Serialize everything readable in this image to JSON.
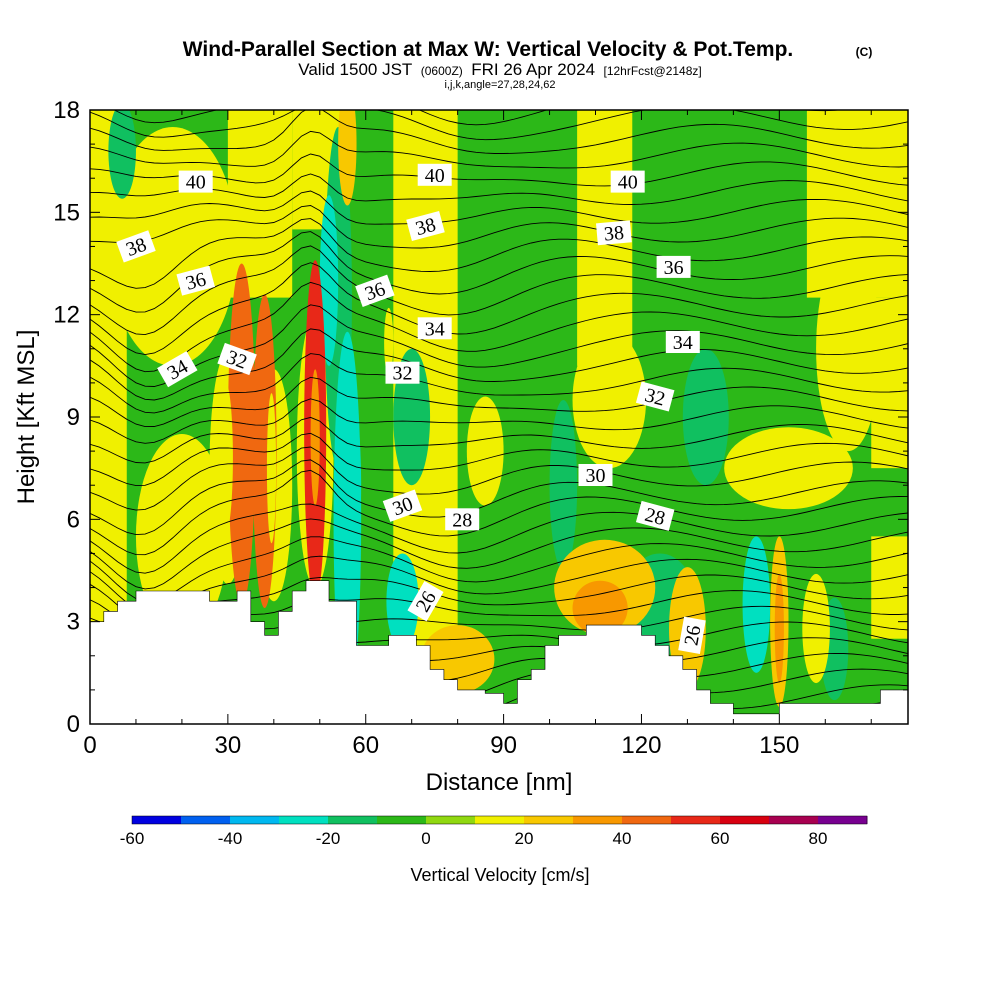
{
  "chart_data": {
    "type": "heatmap",
    "title": "Wind-Parallel Section at Max W: Vertical Velocity & Pot.Temp.",
    "copyright_mark": "(C)",
    "subtitle": {
      "valid_prefix": "Valid 1500 JST",
      "utc": "(0600Z)",
      "date": "FRI 26 Apr 2024",
      "fcst": "[12hrFcst@2148z]"
    },
    "subtitle2": "i,j,k,angle=27,28,24,62",
    "xlabel": "Distance [nm]",
    "ylabel": "Height [Kft MSL]",
    "xlim": [
      0,
      178
    ],
    "ylim": [
      0,
      18
    ],
    "xticks": [
      0,
      30,
      60,
      90,
      120,
      150
    ],
    "yticks": [
      0,
      3,
      6,
      9,
      12,
      15,
      18
    ],
    "colorbar": {
      "label": "Vertical Velocity [cm/s]",
      "ticks": [
        -60,
        -40,
        -20,
        0,
        20,
        40,
        60,
        80
      ],
      "range": [
        -60,
        90
      ],
      "colors": [
        "#0000e0",
        "#0060f0",
        "#00b8f0",
        "#00e0c0",
        "#10c060",
        "#2cb818",
        "#90d810",
        "#f0f000",
        "#f8c800",
        "#f89800",
        "#f06810",
        "#e82818",
        "#d80010",
        "#a80050",
        "#780090"
      ]
    },
    "background_fill": "#2cb818",
    "terrain": [
      [
        0,
        3.0
      ],
      [
        3,
        3.0
      ],
      [
        3,
        3.3
      ],
      [
        6,
        3.3
      ],
      [
        6,
        3.6
      ],
      [
        10,
        3.6
      ],
      [
        10,
        3.9
      ],
      [
        26,
        3.9
      ],
      [
        26,
        3.6
      ],
      [
        32,
        3.6
      ],
      [
        32,
        3.9
      ],
      [
        35,
        3.9
      ],
      [
        35,
        3.0
      ],
      [
        38,
        3.0
      ],
      [
        38,
        2.6
      ],
      [
        41,
        2.6
      ],
      [
        41,
        3.3
      ],
      [
        44,
        3.3
      ],
      [
        44,
        3.9
      ],
      [
        47,
        3.9
      ],
      [
        47,
        4.2
      ],
      [
        52,
        4.2
      ],
      [
        52,
        3.6
      ],
      [
        58,
        3.6
      ],
      [
        58,
        2.3
      ],
      [
        65,
        2.3
      ],
      [
        65,
        2.6
      ],
      [
        71,
        2.6
      ],
      [
        71,
        2.3
      ],
      [
        74,
        2.3
      ],
      [
        74,
        1.6
      ],
      [
        77,
        1.6
      ],
      [
        77,
        1.3
      ],
      [
        80,
        1.3
      ],
      [
        80,
        1.0
      ],
      [
        86,
        1.0
      ],
      [
        86,
        0.9
      ],
      [
        90,
        0.9
      ],
      [
        90,
        0.6
      ],
      [
        93,
        0.6
      ],
      [
        93,
        1.3
      ],
      [
        96,
        1.3
      ],
      [
        96,
        1.6
      ],
      [
        99,
        1.6
      ],
      [
        99,
        2.3
      ],
      [
        102,
        2.3
      ],
      [
        102,
        2.6
      ],
      [
        108,
        2.6
      ],
      [
        108,
        2.9
      ],
      [
        120,
        2.9
      ],
      [
        120,
        2.6
      ],
      [
        123,
        2.6
      ],
      [
        123,
        2.3
      ],
      [
        126,
        2.3
      ],
      [
        126,
        2.0
      ],
      [
        129,
        2.0
      ],
      [
        129,
        1.6
      ],
      [
        132,
        1.6
      ],
      [
        132,
        1.0
      ],
      [
        135,
        1.0
      ],
      [
        135,
        0.6
      ],
      [
        140,
        0.6
      ],
      [
        140,
        0.3
      ],
      [
        150,
        0.3
      ],
      [
        150,
        0.6
      ],
      [
        172,
        0.6
      ],
      [
        172,
        1.0
      ],
      [
        178,
        1.0
      ]
    ],
    "w_features": [
      {
        "type": "band",
        "x0": -1,
        "x1": 8,
        "y0": 0,
        "y1": 18.5,
        "w": 15
      },
      {
        "type": "band",
        "x0": 30,
        "x1": 44,
        "y0": 12.5,
        "y1": 18.5,
        "w": 12
      },
      {
        "type": "band",
        "x0": 44,
        "x1": 56,
        "y0": 14.5,
        "y1": 18.5,
        "w": 12
      },
      {
        "type": "band",
        "x0": 66,
        "x1": 80,
        "y0": 0,
        "y1": 18.5,
        "w": 12
      },
      {
        "type": "band",
        "x0": 106,
        "x1": 118,
        "y0": 10.5,
        "y1": 18.5,
        "w": 12
      },
      {
        "type": "band",
        "x0": 156,
        "x1": 178,
        "y0": 12.5,
        "y1": 18.5,
        "w": 12
      },
      {
        "type": "band",
        "x0": 170,
        "x1": 178,
        "y0": 7.5,
        "y1": 12.5,
        "w": 12
      },
      {
        "type": "band",
        "x0": 170,
        "x1": 178,
        "y0": 2.5,
        "y1": 5.5,
        "w": 12
      },
      {
        "type": "blob",
        "cx": 18,
        "cy": 14,
        "rx": 14,
        "ry": 3.5,
        "w": 12
      },
      {
        "type": "blob",
        "cx": 20,
        "cy": 5.5,
        "rx": 10,
        "ry": 3,
        "w": 12
      },
      {
        "type": "blob",
        "cx": 152,
        "cy": 7.5,
        "rx": 14,
        "ry": 1.2,
        "w": 12
      },
      {
        "type": "blob",
        "cx": 165,
        "cy": 11,
        "rx": 7,
        "ry": 3,
        "w": 12
      },
      {
        "type": "blob",
        "cx": 113,
        "cy": 9.5,
        "rx": 8,
        "ry": 2,
        "w": 12
      },
      {
        "type": "blob",
        "cx": 86,
        "cy": 8,
        "rx": 4,
        "ry": 1.6,
        "w": 12
      },
      {
        "type": "blob",
        "cx": 30,
        "cy": 7.5,
        "rx": 4,
        "ry": 3.4,
        "w": 12
      },
      {
        "type": "blob",
        "cx": 40,
        "cy": 7,
        "rx": 4,
        "ry": 3.4,
        "w": 12
      },
      {
        "type": "blob",
        "cx": 49,
        "cy": 8,
        "rx": 4,
        "ry": 4,
        "w": 12
      },
      {
        "type": "blob",
        "cx": 70,
        "cy": 9,
        "rx": 4,
        "ry": 2,
        "w": -15
      },
      {
        "type": "blob",
        "cx": 103,
        "cy": 7,
        "rx": 3,
        "ry": 2.5,
        "w": -15
      },
      {
        "type": "blob",
        "cx": 134,
        "cy": 9,
        "rx": 5,
        "ry": 2,
        "w": -15
      },
      {
        "type": "blob",
        "cx": 145,
        "cy": 3.5,
        "rx": 3,
        "ry": 2,
        "w": -25
      },
      {
        "type": "blob",
        "cx": 124,
        "cy": 3.5,
        "rx": 8,
        "ry": 1.5,
        "w": -15
      },
      {
        "type": "blob",
        "cx": 162,
        "cy": 2.2,
        "rx": 3,
        "ry": 1.5,
        "w": -15
      },
      {
        "type": "blob",
        "cx": 7,
        "cy": 16.8,
        "rx": 3,
        "ry": 1.4,
        "w": -15
      },
      {
        "type": "blob",
        "cx": 54,
        "cy": 12.5,
        "rx": 3,
        "ry": 5,
        "w": -15
      },
      {
        "type": "blob",
        "cx": 56,
        "cy": 6,
        "rx": 3,
        "ry": 5.5,
        "w": -25
      },
      {
        "type": "blob",
        "cx": 52,
        "cy": 13,
        "rx": 2,
        "ry": 2.5,
        "w": -30
      },
      {
        "type": "blob",
        "cx": 57,
        "cy": 7,
        "rx": 2,
        "ry": 2.5,
        "w": -25
      },
      {
        "type": "blob",
        "cx": 68,
        "cy": 3.6,
        "rx": 3.5,
        "ry": 1.4,
        "w": -25
      },
      {
        "type": "blob",
        "cx": 112,
        "cy": 4,
        "rx": 11,
        "ry": 1.4,
        "w": 24
      },
      {
        "type": "blob",
        "cx": 111,
        "cy": 3.4,
        "rx": 6,
        "ry": 0.8,
        "w": 34
      },
      {
        "type": "blob",
        "cx": 80,
        "cy": 1.9,
        "rx": 8,
        "ry": 1.0,
        "w": 22
      },
      {
        "type": "blob",
        "cx": 130,
        "cy": 2.8,
        "rx": 4,
        "ry": 1.8,
        "w": 22
      },
      {
        "type": "blob",
        "cx": 150,
        "cy": 3,
        "rx": 2,
        "ry": 2.5,
        "w": 24
      },
      {
        "type": "blob",
        "cx": 150,
        "cy": 2.8,
        "rx": 1,
        "ry": 1.6,
        "w": 32
      },
      {
        "type": "blob",
        "cx": 158,
        "cy": 2.8,
        "rx": 3,
        "ry": 1.6,
        "w": 12
      },
      {
        "type": "blob",
        "cx": 56,
        "cy": 17,
        "rx": 2,
        "ry": 1.8,
        "w": 22
      },
      {
        "type": "blob",
        "cx": 65,
        "cy": 11.2,
        "rx": 1,
        "ry": 1.0,
        "w": 18
      },
      {
        "type": "blob",
        "cx": 33,
        "cy": 8.5,
        "rx": 3.0,
        "ry": 5.0,
        "w": 42
      },
      {
        "type": "blob",
        "cx": 29.5,
        "cy": 7.8,
        "rx": 1.6,
        "ry": 2.2,
        "w": 16
      },
      {
        "type": "blob",
        "cx": 38,
        "cy": 8.0,
        "rx": 2.6,
        "ry": 4.6,
        "w": 42
      },
      {
        "type": "blob",
        "cx": 39.5,
        "cy": 7.5,
        "rx": 1.0,
        "ry": 2.2,
        "w": 16
      },
      {
        "type": "blob",
        "cx": 49,
        "cy": 8.6,
        "rx": 2.4,
        "ry": 5.0,
        "w": 58
      },
      {
        "type": "blob",
        "cx": 49,
        "cy": 8.4,
        "rx": 1.0,
        "ry": 2.0,
        "w": 30
      }
    ],
    "theta_contour_levels": [
      26,
      28,
      30,
      32,
      34,
      36,
      38,
      40
    ],
    "theta_contour_labels": [
      {
        "text": "40",
        "x": 23,
        "y": 15.9,
        "angle": 0
      },
      {
        "text": "40",
        "x": 75,
        "y": 16.1,
        "angle": 0
      },
      {
        "text": "40",
        "x": 117,
        "y": 15.9,
        "angle": 0
      },
      {
        "text": "38",
        "x": 10,
        "y": 14.0,
        "angle": -20
      },
      {
        "text": "38",
        "x": 73,
        "y": 14.6,
        "angle": -15
      },
      {
        "text": "38",
        "x": 114,
        "y": 14.4,
        "angle": -5
      },
      {
        "text": "36",
        "x": 23,
        "y": 13.0,
        "angle": -15
      },
      {
        "text": "36",
        "x": 62,
        "y": 12.7,
        "angle": -20
      },
      {
        "text": "36",
        "x": 127,
        "y": 13.4,
        "angle": 0
      },
      {
        "text": "34",
        "x": 19,
        "y": 10.4,
        "angle": -30
      },
      {
        "text": "34",
        "x": 75,
        "y": 11.6,
        "angle": 0
      },
      {
        "text": "34",
        "x": 129,
        "y": 11.2,
        "angle": 0
      },
      {
        "text": "32",
        "x": 32,
        "y": 10.7,
        "angle": 20
      },
      {
        "text": "32",
        "x": 68,
        "y": 10.3,
        "angle": 0
      },
      {
        "text": "32",
        "x": 123,
        "y": 9.6,
        "angle": 15
      },
      {
        "text": "30",
        "x": 68,
        "y": 6.4,
        "angle": -20
      },
      {
        "text": "30",
        "x": 110,
        "y": 7.3,
        "angle": 0
      },
      {
        "text": "28",
        "x": 81,
        "y": 6.0,
        "angle": 0
      },
      {
        "text": "28",
        "x": 123,
        "y": 6.1,
        "angle": 15
      },
      {
        "text": "26",
        "x": 73,
        "y": 3.6,
        "angle": -60
      },
      {
        "text": "26",
        "x": 131,
        "y": 2.6,
        "angle": -80
      }
    ]
  }
}
